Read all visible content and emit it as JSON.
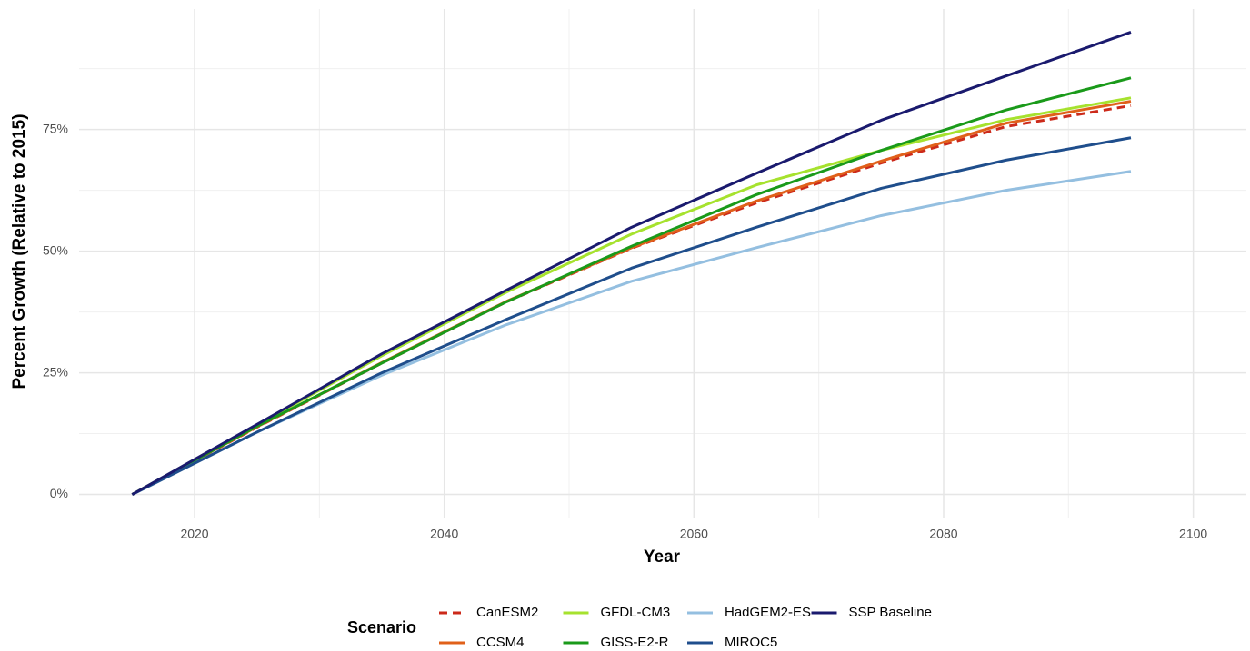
{
  "chart_data": {
    "type": "line",
    "x_label": "Year",
    "y_label": "Percent Growth (Relative to 2015)",
    "x": [
      2015,
      2025,
      2035,
      2045,
      2055,
      2065,
      2075,
      2085,
      2095
    ],
    "xlim": [
      2010.75,
      2104.25
    ],
    "xticks": [
      2020,
      2040,
      2060,
      2080,
      2100
    ],
    "ylim": [
      -4.75,
      99.75
    ],
    "yticks": [
      {
        "value": 0,
        "label": "0%"
      },
      {
        "value": 25,
        "label": "25%"
      },
      {
        "value": 50,
        "label": "50%"
      },
      {
        "value": 75,
        "label": "75%"
      }
    ],
    "grid": true,
    "legend_title": "Scenario",
    "legend_position": "bottom",
    "series": [
      {
        "name": "CanESM2",
        "color": "#cc2a1a",
        "dashed": true,
        "values": [
          0,
          13.8,
          27,
          39.6,
          50.6,
          59.9,
          68.1,
          75.6,
          79.9
        ]
      },
      {
        "name": "CCSM4",
        "color": "#e0601a",
        "values": [
          0,
          13.9,
          27.1,
          39.7,
          50.7,
          60.3,
          68.5,
          76.3,
          80.8
        ]
      },
      {
        "name": "GFDL-CM3",
        "color": "#a6e22e",
        "values": [
          0,
          14.3,
          28.5,
          41.6,
          53.5,
          63.6,
          70.7,
          77,
          81.5
        ]
      },
      {
        "name": "GISS-E2-R",
        "color": "#1a9a1a",
        "values": [
          0,
          14,
          27,
          39.6,
          51,
          61.6,
          70.7,
          79,
          85.6
        ]
      },
      {
        "name": "HadGEM2-ES",
        "color": "#94bfe0",
        "values": [
          0,
          12.8,
          24.5,
          34.9,
          43.8,
          50.7,
          57.3,
          62.5,
          66.4
        ]
      },
      {
        "name": "MIROC5",
        "color": "#1f4e8c",
        "values": [
          0,
          12.8,
          25,
          36,
          46.5,
          54.9,
          62.9,
          68.7,
          73.3
        ]
      },
      {
        "name": "SSP Baseline",
        "color": "#1a1a6e",
        "values": [
          0,
          14.4,
          28.9,
          42,
          54.9,
          66,
          76.9,
          86,
          95
        ]
      }
    ]
  }
}
